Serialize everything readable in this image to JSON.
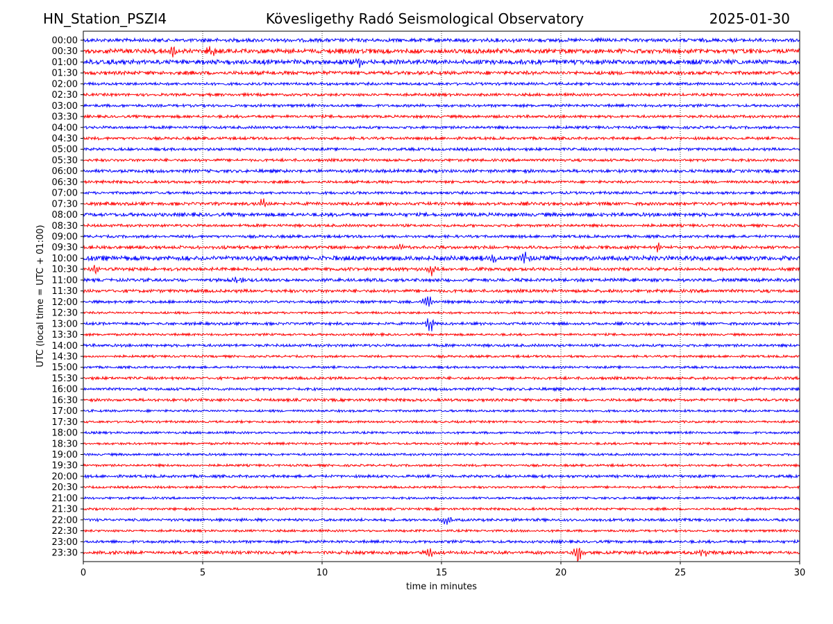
{
  "header": {
    "station": "HN_Station_PSZI4",
    "observatory": "Kövesligethy Radó Seismological Observatory",
    "date": "2025-01-30"
  },
  "chart_data": {
    "type": "line",
    "title": "Kövesligethy Radó Seismological Observatory",
    "xlabel": "time in minutes",
    "ylabel": "UTC (local time = UTC + 01:00)",
    "xlim": [
      0,
      30
    ],
    "xticks": [
      "0",
      "5",
      "10",
      "15",
      "20",
      "25",
      "30"
    ],
    "grid": "vertical dotted",
    "colors": [
      "#0000ff",
      "#ff0000"
    ],
    "rows": [
      "00:00",
      "00:30",
      "01:00",
      "01:30",
      "02:00",
      "02:30",
      "03:00",
      "03:30",
      "04:00",
      "04:30",
      "05:00",
      "05:30",
      "06:00",
      "06:30",
      "07:00",
      "07:30",
      "08:00",
      "08:30",
      "09:00",
      "09:30",
      "10:00",
      "10:30",
      "11:00",
      "11:30",
      "12:00",
      "12:30",
      "13:00",
      "13:30",
      "14:00",
      "14:30",
      "15:00",
      "15:30",
      "16:00",
      "16:30",
      "17:00",
      "17:30",
      "18:00",
      "18:30",
      "19:00",
      "19:30",
      "20:00",
      "20:30",
      "21:00",
      "21:30",
      "22:00",
      "22:30",
      "23:00",
      "23:30"
    ],
    "row_noise_level": [
      4,
      5,
      5,
      4,
      3,
      3,
      3,
      3,
      3,
      3,
      3,
      3,
      3.5,
      3,
      3,
      3.5,
      4,
      3,
      3,
      3.5,
      5,
      3.5,
      3.5,
      3.5,
      3,
      2.5,
      3,
      2.5,
      3,
      2.5,
      2.5,
      3,
      3,
      3,
      2.5,
      2.5,
      2.5,
      2.5,
      2.5,
      2.5,
      3,
      2.5,
      2.5,
      2.5,
      3,
      2.5,
      3,
      3.5
    ],
    "events": [
      {
        "row": "00:30",
        "minute": 3.8,
        "amplitude": 12
      },
      {
        "row": "00:30",
        "minute": 5.4,
        "amplitude": 8
      },
      {
        "row": "01:00",
        "minute": 11.6,
        "amplitude": 8
      },
      {
        "row": "07:30",
        "minute": 7.5,
        "amplitude": 9
      },
      {
        "row": "09:30",
        "minute": 13.2,
        "amplitude": 8
      },
      {
        "row": "09:30",
        "minute": 24.1,
        "amplitude": 8
      },
      {
        "row": "10:00",
        "minute": 17.2,
        "amplitude": 9
      },
      {
        "row": "10:00",
        "minute": 18.5,
        "amplitude": 11
      },
      {
        "row": "10:30",
        "minute": 0.5,
        "amplitude": 9
      },
      {
        "row": "10:30",
        "minute": 14.6,
        "amplitude": 9
      },
      {
        "row": "11:00",
        "minute": 6.5,
        "amplitude": 7
      },
      {
        "row": "12:00",
        "minute": 14.4,
        "amplitude": 10
      },
      {
        "row": "13:00",
        "minute": 14.5,
        "amplitude": 12
      },
      {
        "row": "22:00",
        "minute": 15.2,
        "amplitude": 9
      },
      {
        "row": "23:30",
        "minute": 14.5,
        "amplitude": 10
      },
      {
        "row": "23:30",
        "minute": 20.7,
        "amplitude": 15
      },
      {
        "row": "23:30",
        "minute": 25.9,
        "amplitude": 9
      }
    ]
  }
}
